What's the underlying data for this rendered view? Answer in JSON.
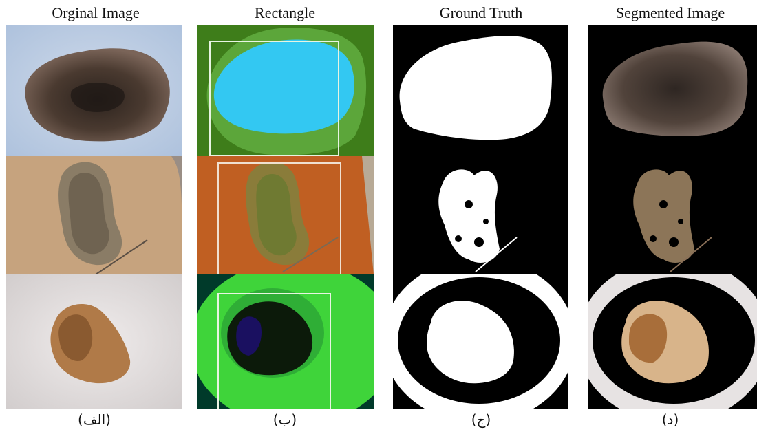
{
  "columns": [
    {
      "title": "Orginal Image",
      "caption": "(الف)"
    },
    {
      "title": "Rectangle",
      "caption": "(ب)"
    },
    {
      "title": "Ground Truth",
      "caption": "(ج)"
    },
    {
      "title": "Segmented Image",
      "caption": "(د)"
    }
  ],
  "colors": {
    "row1_background": "#b9cbe3",
    "row2_background": "#c6a37e",
    "row3_background": "#e7e3e3",
    "rect_row1_green": "#3e7d1a",
    "rect_row1_cyan": "#33c8f2",
    "rect_row2_orange": "#c05f22",
    "rect_row3_green": "#3fd43a",
    "mask_white": "#ffffff",
    "mask_black": "#000000"
  }
}
